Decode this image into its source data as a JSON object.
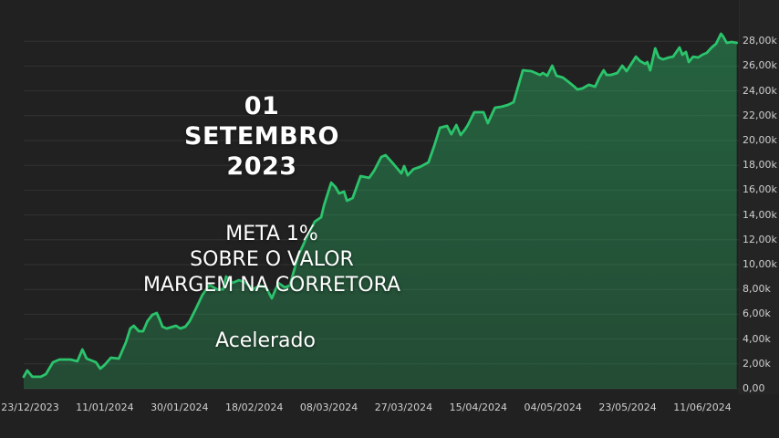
{
  "overlay": {
    "date_heading": {
      "lines": [
        "01",
        "SETEMBRO",
        "2023"
      ]
    },
    "meta": {
      "lines": [
        "META 1%",
        "SOBRE O VALOR",
        "MARGEM NA CORRETORA"
      ]
    },
    "mode_label": "Acelerado"
  },
  "colors": {
    "background": "#212121",
    "axis_background": "#242424",
    "grid": "#323232",
    "line": "#2bc46c",
    "fill_top": "rgba(43,196,108,0.40)",
    "fill_bottom": "rgba(43,196,108,0.26)",
    "axis_text": "#cfcfcf",
    "overlay_text": "#ffffff"
  },
  "chart_data": {
    "type": "area",
    "title": "",
    "xlabel": "",
    "ylabel": "",
    "grid": true,
    "legend_position": "none",
    "x_tick_labels": [
      "23/12/2023",
      "11/01/2024",
      "30/01/2024",
      "18/02/2024",
      "08/03/2024",
      "27/03/2024",
      "15/04/2024",
      "04/05/2024",
      "23/05/2024",
      "11/06/2024"
    ],
    "y_ticks_k": [
      0,
      2,
      4,
      6,
      8,
      10,
      12,
      14,
      16,
      18,
      20,
      22,
      24,
      26,
      28
    ],
    "y_tick_labels": [
      "0,00",
      "2,00k",
      "4,00k",
      "6,00k",
      "8,00k",
      "10,00k",
      "12,00k",
      "14,00k",
      "16,00k",
      "18,00k",
      "20,00k",
      "22,00k",
      "24,00k",
      "26,00k",
      "28,00k"
    ],
    "ylim_k": [
      0,
      31.3
    ],
    "value_format": "pt-BR thousands (k)",
    "series": [
      {
        "name": "equity-curve",
        "points_pct_value_k": [
          [
            0,
            0.96
          ],
          [
            0.5,
            1.47
          ],
          [
            1.2,
            0.96
          ],
          [
            2.4,
            0.96
          ],
          [
            3.1,
            1.18
          ],
          [
            4.1,
            2.13
          ],
          [
            5,
            2.35
          ],
          [
            6.5,
            2.35
          ],
          [
            7.5,
            2.21
          ],
          [
            8.2,
            3.16
          ],
          [
            8.8,
            2.43
          ],
          [
            10.1,
            2.13
          ],
          [
            10.7,
            1.62
          ],
          [
            11.3,
            1.91
          ],
          [
            12.2,
            2.5
          ],
          [
            13.3,
            2.43
          ],
          [
            14.3,
            3.75
          ],
          [
            14.9,
            4.85
          ],
          [
            15.4,
            5.07
          ],
          [
            16.1,
            4.63
          ],
          [
            16.7,
            4.63
          ],
          [
            17.3,
            5.44
          ],
          [
            18,
            5.96
          ],
          [
            18.6,
            6.1
          ],
          [
            19,
            5.59
          ],
          [
            19.4,
            5
          ],
          [
            20,
            4.85
          ],
          [
            21.3,
            5.07
          ],
          [
            21.9,
            4.85
          ],
          [
            22.6,
            5
          ],
          [
            23.2,
            5.44
          ],
          [
            24.1,
            6.47
          ],
          [
            25,
            7.57
          ],
          [
            26,
            8.38
          ],
          [
            27,
            8.01
          ],
          [
            27.9,
            8.01
          ],
          [
            28.3,
            9.04
          ],
          [
            29.2,
            8.53
          ],
          [
            30.1,
            8.75
          ],
          [
            31.1,
            8.53
          ],
          [
            32,
            8.01
          ],
          [
            33,
            8.31
          ],
          [
            33.9,
            8.16
          ],
          [
            34.7,
            7.28
          ],
          [
            35.6,
            8.53
          ],
          [
            36.5,
            8.16
          ],
          [
            37.2,
            8.31
          ],
          [
            38.4,
            10.74
          ],
          [
            39.4,
            11.99
          ],
          [
            40.7,
            13.46
          ],
          [
            41.6,
            13.82
          ],
          [
            42,
            14.8
          ],
          [
            43,
            16.6
          ],
          [
            43.6,
            16.25
          ],
          [
            44.1,
            15.74
          ],
          [
            44.8,
            15.88
          ],
          [
            45.2,
            15.15
          ],
          [
            46,
            15.37
          ],
          [
            47.1,
            17.13
          ],
          [
            48.3,
            16.99
          ],
          [
            49,
            17.57
          ],
          [
            50,
            18.68
          ],
          [
            50.6,
            18.82
          ],
          [
            51.5,
            18.24
          ],
          [
            52.8,
            17.35
          ],
          [
            53.2,
            17.94
          ],
          [
            53.7,
            17.2
          ],
          [
            54.5,
            17.7
          ],
          [
            55.4,
            17.87
          ],
          [
            56.6,
            18.24
          ],
          [
            57.4,
            19.56
          ],
          [
            58.2,
            21.03
          ],
          [
            59.2,
            21.18
          ],
          [
            59.8,
            20.51
          ],
          [
            60.5,
            21.25
          ],
          [
            61.1,
            20.44
          ],
          [
            61.7,
            20.88
          ],
          [
            62.1,
            21.25
          ],
          [
            63,
            22.28
          ],
          [
            64.3,
            22.28
          ],
          [
            64.9,
            21.4
          ],
          [
            65.6,
            22.28
          ],
          [
            65.9,
            22.65
          ],
          [
            66.8,
            22.72
          ],
          [
            67.7,
            22.87
          ],
          [
            68.5,
            23.09
          ],
          [
            69.8,
            25.66
          ],
          [
            71,
            25.59
          ],
          [
            72.2,
            25.29
          ],
          [
            72.6,
            25.44
          ],
          [
            73.2,
            25.22
          ],
          [
            73.9,
            26.03
          ],
          [
            74.5,
            25.22
          ],
          [
            75.4,
            25.07
          ],
          [
            76.2,
            24.71
          ],
          [
            77,
            24.34
          ],
          [
            77.4,
            24.12
          ],
          [
            78.1,
            24.19
          ],
          [
            79,
            24.49
          ],
          [
            79.9,
            24.34
          ],
          [
            80.5,
            25.07
          ],
          [
            81.1,
            25.66
          ],
          [
            81.5,
            25.29
          ],
          [
            82.1,
            25.29
          ],
          [
            83,
            25.44
          ],
          [
            83.7,
            26.03
          ],
          [
            84.3,
            25.59
          ],
          [
            85.6,
            26.76
          ],
          [
            86.2,
            26.4
          ],
          [
            86.9,
            26.18
          ],
          [
            87.2,
            26.32
          ],
          [
            87.6,
            25.66
          ],
          [
            88.3,
            27.43
          ],
          [
            88.8,
            26.69
          ],
          [
            89.4,
            26.54
          ],
          [
            90.2,
            26.69
          ],
          [
            90.8,
            26.76
          ],
          [
            91.7,
            27.5
          ],
          [
            92.1,
            26.91
          ],
          [
            92.6,
            27.13
          ],
          [
            93,
            26.32
          ],
          [
            93.6,
            26.76
          ],
          [
            94.3,
            26.69
          ],
          [
            94.9,
            26.91
          ],
          [
            95.5,
            27.06
          ],
          [
            96.2,
            27.5
          ],
          [
            96.8,
            27.79
          ],
          [
            97.5,
            28.6
          ],
          [
            97.8,
            28.38
          ],
          [
            98.3,
            27.87
          ],
          [
            99,
            27.94
          ],
          [
            99.7,
            27.87
          ]
        ]
      }
    ]
  }
}
